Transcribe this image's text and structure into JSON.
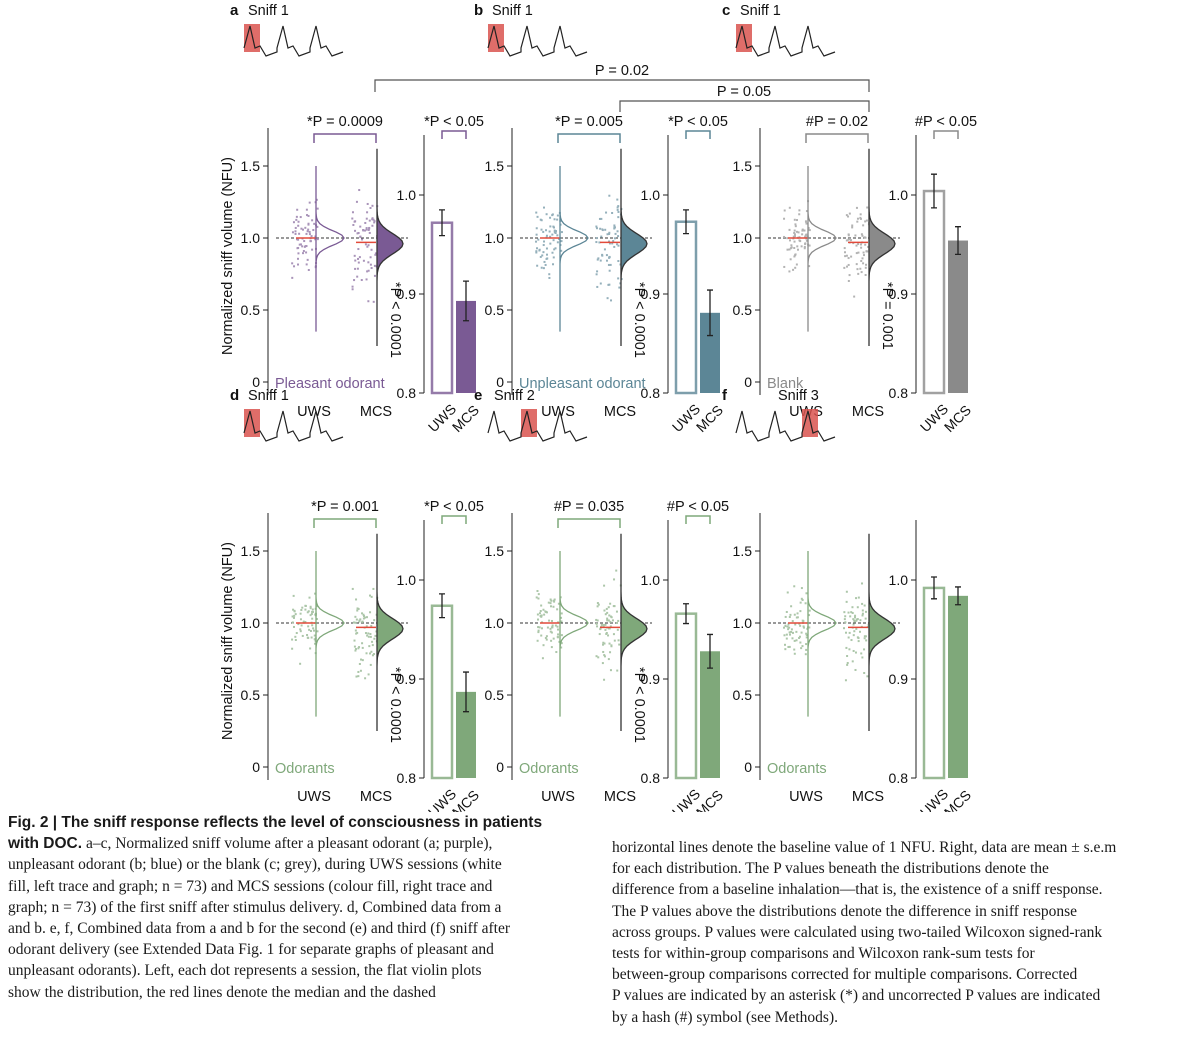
{
  "colors": {
    "pleasant": "#7a5a94",
    "unpleasant": "#5c8696",
    "blank": "#8a8a8a",
    "odorants": "#7fa87a",
    "median": "#e24a3a",
    "sniff_box": "#d9534f"
  },
  "y_axis_label": "Normalized sniff volume (NFU)",
  "violin_ticks": [
    "1.5",
    "1.0",
    "0.5",
    "0"
  ],
  "bar_ticks": [
    "1.0",
    "0.9",
    "0.8"
  ],
  "x_labels": {
    "uws": "UWS",
    "mcs": "MCS"
  },
  "panels": [
    {
      "letter": "a",
      "sniff": "Sniff 1",
      "sniff_pos": 0,
      "color_key": "pleasant",
      "label": "Pleasant odorant",
      "top_p": "*P = 0.0009",
      "side_p": "*P < 0.0001",
      "bar_p": "*P < 0.05",
      "bar_uws": 0.972,
      "bar_uws_err": 0.013,
      "bar_mcs": 0.893,
      "bar_mcs_err": 0.02
    },
    {
      "letter": "b",
      "sniff": "Sniff 1",
      "sniff_pos": 0,
      "color_key": "unpleasant",
      "label": "Unpleasant odorant",
      "top_p": "*P = 0.005",
      "side_p": "*P < 0.0001",
      "bar_p": "*P < 0.05",
      "bar_uws": 0.973,
      "bar_uws_err": 0.012,
      "bar_mcs": 0.881,
      "bar_mcs_err": 0.023
    },
    {
      "letter": "c",
      "sniff": "Sniff 1",
      "sniff_pos": 0,
      "color_key": "blank",
      "label": "Blank",
      "top_p": "#P = 0.02",
      "side_p": "*P = 0.001",
      "bar_p": "#P < 0.05",
      "bar_uws": 1.004,
      "bar_uws_err": 0.017,
      "bar_mcs": 0.954,
      "bar_mcs_err": 0.014
    },
    {
      "letter": "d",
      "sniff": "Sniff 1",
      "sniff_pos": 0,
      "color_key": "odorants",
      "label": "Odorants",
      "top_p": "*P = 0.001",
      "side_p": "*P < 0.0001",
      "bar_p": "*P < 0.05",
      "bar_uws": 0.974,
      "bar_uws_err": 0.012,
      "bar_mcs": 0.887,
      "bar_mcs_err": 0.02
    },
    {
      "letter": "e",
      "sniff": "Sniff 2",
      "sniff_pos": 1,
      "color_key": "odorants",
      "label": "Odorants",
      "top_p": "#P = 0.035",
      "side_p": "*P < 0.0001",
      "bar_p": "#P < 0.05",
      "bar_uws": 0.966,
      "bar_uws_err": 0.01,
      "bar_mcs": 0.928,
      "bar_mcs_err": 0.017
    },
    {
      "letter": "f",
      "sniff": "Sniff 3",
      "sniff_pos": 2,
      "color_key": "odorants",
      "label": "Odorants",
      "top_p": "",
      "side_p": "",
      "bar_p": "",
      "bar_uws": 0.992,
      "bar_uws_err": 0.011,
      "bar_mcs": 0.984,
      "bar_mcs_err": 0.009
    }
  ],
  "cross_comparisons": {
    "p1": "P = 0.02",
    "p2": "P = 0.05"
  },
  "caption": {
    "left_lines": [
      {
        "bold": "Fig. 2 | The sniff response reflects the level of consciousness in patients",
        "text": ""
      },
      {
        "bold": "with DOC.",
        "text": " a–c, Normalized sniff volume after a pleasant odorant (a; purple),"
      },
      {
        "bold": "",
        "text": "unpleasant odorant (b; blue) or the blank (c; grey), during UWS sessions (white"
      },
      {
        "bold": "",
        "text": "fill, left trace and graph; n = 73) and MCS sessions (colour fill, right trace and"
      },
      {
        "bold": "",
        "text": "graph; n = 73) of the first sniff after stimulus delivery. d, Combined data from a"
      },
      {
        "bold": "",
        "text": "and b. e, f, Combined data from a and b for the second (e) and third (f) sniff after"
      },
      {
        "bold": "",
        "text": "odorant delivery (see Extended Data Fig. 1 for separate graphs of pleasant and"
      },
      {
        "bold": "",
        "text": "unpleasant odorants). Left, each dot represents a session, the flat violin plots"
      },
      {
        "bold": "",
        "text": "show the distribution, the red lines denote the median and the dashed"
      }
    ],
    "right_lines": [
      "horizontal lines denote the baseline value of 1 NFU. Right, data are mean ± s.e.m",
      "for each distribution. The P values beneath the distributions denote the",
      "difference from a baseline inhalation—that is, the existence of a sniff response.",
      "The P values above the distributions denote the difference in sniff response",
      "across groups. P values were calculated using two-tailed Wilcoxon signed-rank",
      "tests for within-group comparisons and Wilcoxon rank-sum tests for",
      "between-group comparisons corrected for multiple comparisons. Corrected",
      "P values are indicated by an asterisk (*) and uncorrected P values are indicated",
      "by a hash (#) symbol (see Methods)."
    ]
  }
}
